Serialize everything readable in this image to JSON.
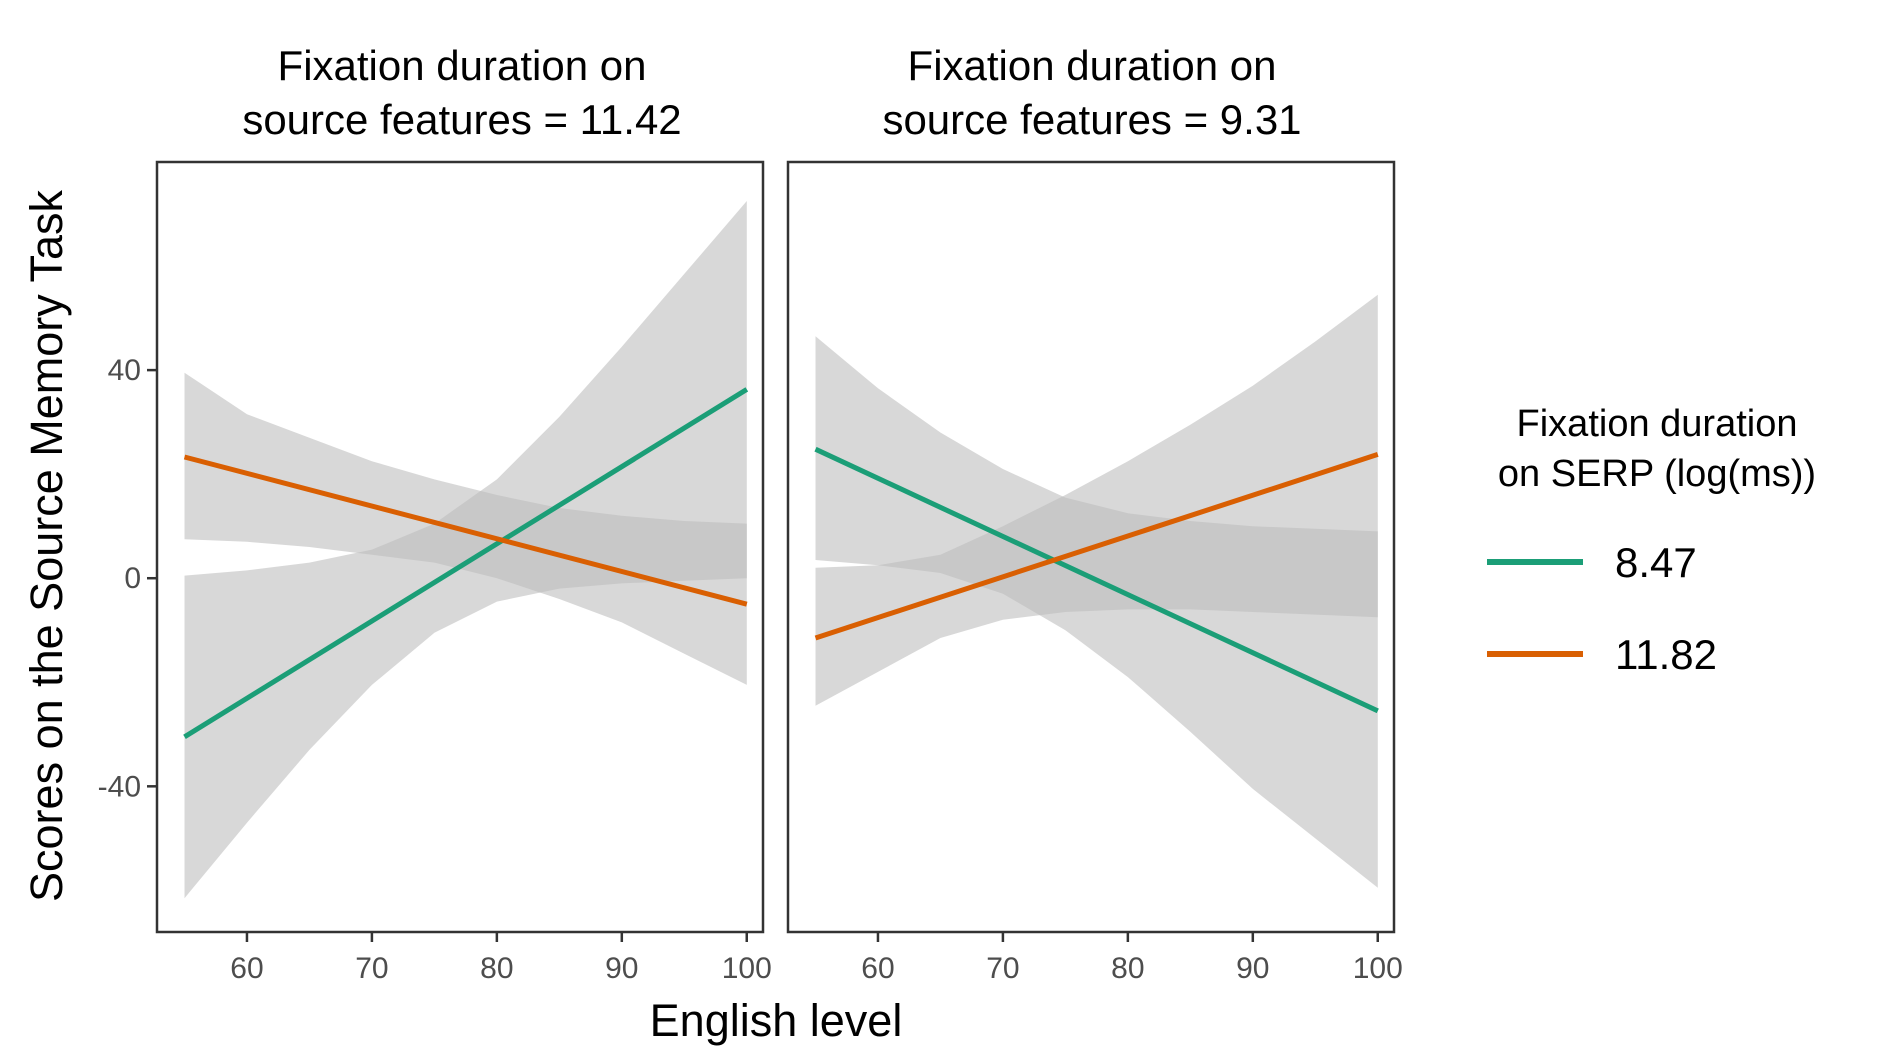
{
  "chart_data": {
    "type": "line",
    "xlabel": "English level",
    "ylabel": "Scores on the Source Memory Task",
    "x_ticks": [
      60,
      70,
      80,
      90,
      100
    ],
    "y_ticks": [
      -40,
      0,
      40
    ],
    "xlim": [
      52.8,
      101.3
    ],
    "ylim": [
      -68,
      80
    ],
    "grid": false,
    "legend": {
      "title_line1": "Fixation duration",
      "title_line2": "on SERP (log(ms))",
      "position": "right",
      "entries": [
        {
          "label": "8.47",
          "color": "#1b9e77"
        },
        {
          "label": "11.82",
          "color": "#d95f02"
        }
      ]
    },
    "ribbon_color": "#bebebe",
    "panels": [
      {
        "title_line1": "Fixation duration on",
        "title_line2": "source features = 11.42",
        "series": [
          {
            "name": "8.47",
            "color": "#1b9e77",
            "x": [
              55,
              100
            ],
            "y": [
              -30.5,
              36.3
            ],
            "ribbon": {
              "x": [
                55,
                60,
                65,
                70,
                75,
                80,
                85,
                90,
                95,
                100
              ],
              "lower": [
                -61.5,
                -47,
                -33,
                -20.5,
                -10.5,
                -4.5,
                -2,
                -1,
                -0.5,
                0
              ],
              "upper": [
                0.5,
                1.5,
                3,
                5.5,
                10.5,
                19,
                31,
                44.5,
                58.5,
                72.5
              ]
            }
          },
          {
            "name": "11.82",
            "color": "#d95f02",
            "x": [
              55,
              100
            ],
            "y": [
              23.3,
              -5
            ],
            "ribbon": {
              "x": [
                55,
                60,
                65,
                70,
                75,
                80,
                85,
                90,
                95,
                100
              ],
              "lower": [
                7.5,
                7,
                6,
                4.5,
                3,
                0,
                -4,
                -8.5,
                -14.5,
                -20.5
              ],
              "upper": [
                39.5,
                31.5,
                27,
                22.5,
                19,
                16,
                13.5,
                12,
                11,
                10.5
              ]
            }
          }
        ]
      },
      {
        "title_line1": "Fixation duration on",
        "title_line2": "source features = 9.31",
        "series": [
          {
            "name": "8.47",
            "color": "#1b9e77",
            "x": [
              55,
              100
            ],
            "y": [
              24.8,
              -25.5
            ],
            "ribbon": {
              "x": [
                55,
                60,
                65,
                70,
                75,
                80,
                85,
                90,
                95,
                100
              ],
              "lower": [
                3.5,
                2.5,
                1,
                -3,
                -10,
                -19,
                -29.5,
                -40.5,
                -50,
                -59.5
              ],
              "upper": [
                46.5,
                36.5,
                28,
                21,
                15.5,
                12.5,
                11,
                10,
                9.5,
                9
              ]
            }
          },
          {
            "name": "11.82",
            "color": "#d95f02",
            "x": [
              55,
              100
            ],
            "y": [
              -11.5,
              23.8
            ],
            "ribbon": {
              "x": [
                55,
                60,
                65,
                70,
                75,
                80,
                85,
                90,
                95,
                100
              ],
              "lower": [
                -24.5,
                -18,
                -11.5,
                -8,
                -6.5,
                -6,
                -6,
                -6.5,
                -7,
                -7.5
              ],
              "upper": [
                2,
                2.5,
                4.5,
                10,
                16,
                22.5,
                29.5,
                37,
                45.5,
                54.5
              ]
            }
          }
        ]
      }
    ]
  }
}
